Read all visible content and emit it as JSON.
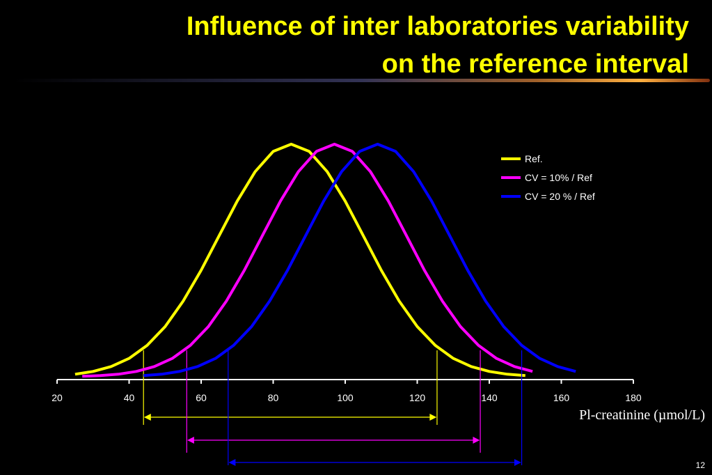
{
  "chart_data": {
    "type": "line",
    "title": [
      "Influence of inter laboratories variability",
      "on the reference interval"
    ],
    "x_label": "Pl-creatinine (µmol/L)",
    "page_number": "12",
    "xlim": [
      20,
      180
    ],
    "xticks": [
      20,
      40,
      60,
      80,
      100,
      120,
      140,
      160,
      180
    ],
    "ylim": [
      0,
      100
    ],
    "legend": "upper right",
    "series": [
      {
        "name": "Ref.",
        "color": "#ffff00",
        "x": [
          25,
          30,
          35,
          40,
          45,
          50,
          55,
          60,
          65,
          70,
          75,
          80,
          85,
          90,
          95,
          100,
          105,
          110,
          115,
          120,
          125,
          130,
          135,
          140,
          145,
          150
        ],
        "values": [
          1.1,
          2.3,
          4.4,
          7.9,
          13.5,
          21.6,
          32.5,
          45.8,
          60.7,
          75.5,
          88.2,
          96.9,
          100,
          96.9,
          88.2,
          75.5,
          60.7,
          45.8,
          32.5,
          21.6,
          13.5,
          7.9,
          4.4,
          2.3,
          1.1,
          0.5
        ],
        "interval": [
          44,
          125.5
        ]
      },
      {
        "name": "CV = 10% / Ref",
        "color": "#ff00ff",
        "x": [
          27,
          32,
          37,
          42,
          47,
          52,
          57,
          62,
          67,
          72,
          77,
          82,
          87,
          92,
          97,
          102,
          107,
          112,
          117,
          122,
          127,
          132,
          137,
          142,
          147,
          152
        ],
        "values": [
          0.2,
          0.5,
          1.1,
          2.3,
          4.4,
          7.9,
          13.5,
          21.6,
          32.5,
          45.8,
          60.7,
          75.5,
          88.2,
          96.9,
          100,
          96.9,
          88.2,
          75.5,
          60.7,
          45.8,
          32.5,
          21.6,
          13.5,
          7.9,
          4.4,
          2.3
        ],
        "interval": [
          56,
          137.5
        ]
      },
      {
        "name": "CV = 20 % / Ref",
        "color": "#0000ff",
        "x": [
          44,
          49,
          54,
          59,
          64,
          69,
          74,
          79,
          84,
          89,
          94,
          99,
          104,
          109,
          114,
          119,
          124,
          129,
          134,
          139,
          144,
          149,
          154,
          159,
          164
        ],
        "values": [
          0.5,
          1.1,
          2.3,
          4.4,
          7.9,
          13.5,
          21.6,
          32.5,
          45.8,
          60.7,
          75.5,
          88.2,
          96.9,
          100,
          96.9,
          88.2,
          75.5,
          60.7,
          45.8,
          32.5,
          21.6,
          13.5,
          7.9,
          4.4,
          2.3
        ],
        "interval": [
          67.5,
          149
        ]
      }
    ]
  }
}
